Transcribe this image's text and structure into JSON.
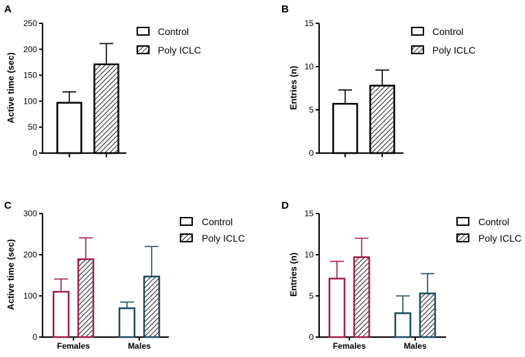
{
  "colors": {
    "ink": "#000000",
    "females": "#a31d4c",
    "males": "#1d4a5c",
    "background": "#ffffff"
  },
  "legend": {
    "control_label": "Control",
    "poly_label": "Poly ICLC"
  },
  "chart_data": [
    {
      "panel": "A",
      "type": "bar",
      "ylabel": "Active time (sec)",
      "xlabel": "",
      "ylim": [
        0,
        250
      ],
      "yticks": [
        0,
        50,
        100,
        150,
        200,
        250
      ],
      "grid": false,
      "legend_position": "top-right",
      "categories": [
        ""
      ],
      "series": [
        {
          "name": "Control",
          "values": [
            97
          ],
          "errors": [
            21
          ]
        },
        {
          "name": "Poly ICLC",
          "values": [
            171
          ],
          "errors": [
            40
          ]
        }
      ]
    },
    {
      "panel": "B",
      "type": "bar",
      "ylabel": "Entries (n)",
      "xlabel": "",
      "ylim": [
        0,
        15
      ],
      "yticks": [
        0,
        5,
        10,
        15
      ],
      "grid": false,
      "legend_position": "top-right",
      "categories": [
        ""
      ],
      "series": [
        {
          "name": "Control",
          "values": [
            5.7
          ],
          "errors": [
            1.6
          ]
        },
        {
          "name": "Poly ICLC",
          "values": [
            7.8
          ],
          "errors": [
            1.8
          ]
        }
      ]
    },
    {
      "panel": "C",
      "type": "bar",
      "ylabel": "Active time (sec)",
      "xlabel": "",
      "ylim": [
        0,
        300
      ],
      "yticks": [
        0,
        100,
        200,
        300
      ],
      "grid": false,
      "legend_position": "top-right",
      "categories": [
        "Females",
        "Males"
      ],
      "series": [
        {
          "name": "Control",
          "values": [
            110,
            70
          ],
          "errors": [
            31,
            15
          ]
        },
        {
          "name": "Poly ICLC",
          "values": [
            189,
            147
          ],
          "errors": [
            52,
            73
          ]
        }
      ]
    },
    {
      "panel": "D",
      "type": "bar",
      "ylabel": "Entries (n)",
      "xlabel": "",
      "ylim": [
        0,
        15
      ],
      "yticks": [
        0,
        5,
        10,
        15
      ],
      "grid": false,
      "legend_position": "top-right",
      "categories": [
        "Females",
        "Males"
      ],
      "series": [
        {
          "name": "Control",
          "values": [
            7.1,
            2.9
          ],
          "errors": [
            2.1,
            2.1
          ]
        },
        {
          "name": "Poly ICLC",
          "values": [
            9.7,
            5.3
          ],
          "errors": [
            2.3,
            2.4
          ]
        }
      ]
    }
  ]
}
